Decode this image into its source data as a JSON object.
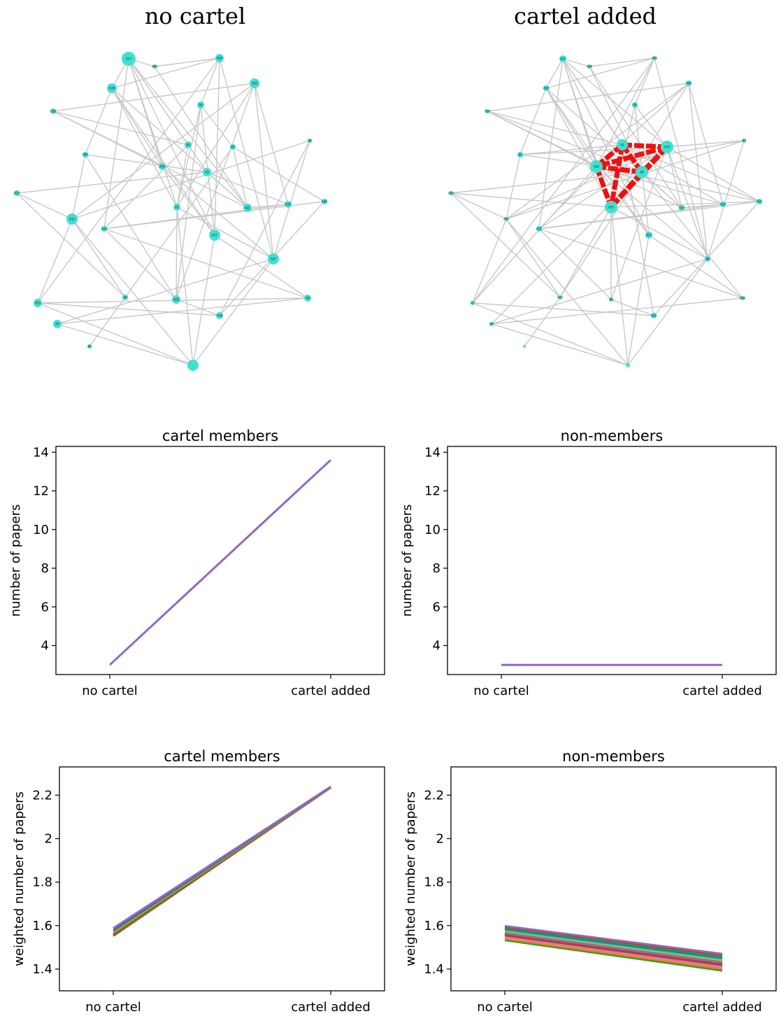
{
  "network_panels": [
    {
      "title": "no cartel",
      "node_color": "#40e0d0",
      "edge_color": "#c8c8c8",
      "nodes": [
        "A17",
        "A28",
        "A26",
        "A18",
        "A20",
        "A9",
        "A30",
        "A0",
        "A5",
        "A8",
        "A25",
        "A30",
        "A3",
        "A1",
        "A21",
        "A19",
        "A13",
        "A24",
        "A12",
        "A14",
        "A11",
        "A27",
        "A6",
        "A22",
        "A9",
        "A16",
        "A15",
        "A7",
        "A0"
      ],
      "edges_drawn": true
    },
    {
      "title": "cartel added",
      "node_color": "#40e0d0",
      "edge_color": "#c8c8c8",
      "cartel_edge_color": "#ee1111",
      "cartel_nodes": [
        "A29",
        "A2",
        "A10",
        "A3",
        "A1"
      ],
      "nodes": [
        "A17",
        "A28",
        "A26",
        "A18",
        "A20",
        "A5",
        "A29",
        "A2",
        "A10",
        "A3",
        "A1",
        "A22",
        "A8",
        "A25",
        "A19",
        "A13",
        "A24",
        "A12",
        "A14",
        "A11",
        "A27",
        "A6",
        "A22",
        "A9",
        "A16",
        "A15",
        "A7",
        "A0"
      ]
    }
  ],
  "chart_data": [
    {
      "type": "line",
      "title": "cartel members",
      "ylabel": "number of papers",
      "categories": [
        "no cartel",
        "cartel added"
      ],
      "yticks": [
        4,
        6,
        8,
        10,
        12,
        14
      ],
      "ylim": [
        2.5,
        14.3
      ],
      "series": [
        {
          "color": "#9467bd",
          "values": [
            3.0,
            13.6
          ]
        }
      ]
    },
    {
      "type": "line",
      "title": "non-members",
      "ylabel": "number of papers",
      "categories": [
        "no cartel",
        "cartel added"
      ],
      "yticks": [
        4,
        6,
        8,
        10,
        12,
        14
      ],
      "ylim": [
        2.5,
        14.3
      ],
      "series": [
        {
          "color": "#9467bd",
          "values": [
            3.0,
            3.0
          ]
        }
      ]
    },
    {
      "type": "line",
      "title": "cartel members",
      "ylabel": "weighted number of papers",
      "categories": [
        "no cartel",
        "cartel added"
      ],
      "yticks": [
        1.4,
        1.6,
        1.8,
        2.0,
        2.2
      ],
      "ylim": [
        1.3,
        2.33
      ],
      "series": [
        {
          "color": "#d62728",
          "values": [
            1.553,
            2.235
          ]
        },
        {
          "color": "#2ca02c",
          "values": [
            1.56,
            2.236
          ]
        },
        {
          "color": "#ff7f0e",
          "values": [
            1.57,
            2.237
          ]
        },
        {
          "color": "#1f77b4",
          "values": [
            1.578,
            2.238
          ]
        },
        {
          "color": "#9467bd",
          "values": [
            1.588,
            2.239
          ]
        }
      ]
    },
    {
      "type": "line",
      "title": "non-members",
      "ylabel": "weighted number of papers",
      "categories": [
        "no cartel",
        "cartel added"
      ],
      "yticks": [
        1.4,
        1.6,
        1.8,
        2.0,
        2.2
      ],
      "ylim": [
        1.3,
        2.33
      ],
      "series": [
        {
          "color": "#2ca02c",
          "values": [
            1.533,
            1.393
          ]
        },
        {
          "color": "#ff7f0e",
          "values": [
            1.54,
            1.402
          ]
        },
        {
          "color": "#e377c2",
          "values": [
            1.548,
            1.41
          ]
        },
        {
          "color": "#8c564b",
          "values": [
            1.555,
            1.418
          ]
        },
        {
          "color": "#d62728",
          "values": [
            1.56,
            1.425
          ]
        },
        {
          "color": "#9467bd",
          "values": [
            1.565,
            1.43
          ]
        },
        {
          "color": "#7f7f7f",
          "values": [
            1.57,
            1.436
          ]
        },
        {
          "color": "#bcbd22",
          "values": [
            1.575,
            1.441
          ]
        },
        {
          "color": "#17becf",
          "values": [
            1.58,
            1.447
          ]
        },
        {
          "color": "#1f77b4",
          "values": [
            1.585,
            1.452
          ]
        },
        {
          "color": "#2ca02c",
          "values": [
            1.59,
            1.458
          ]
        },
        {
          "color": "#d62728",
          "values": [
            1.595,
            1.466
          ]
        },
        {
          "color": "#9467bd",
          "values": [
            1.598,
            1.47
          ]
        }
      ]
    }
  ]
}
